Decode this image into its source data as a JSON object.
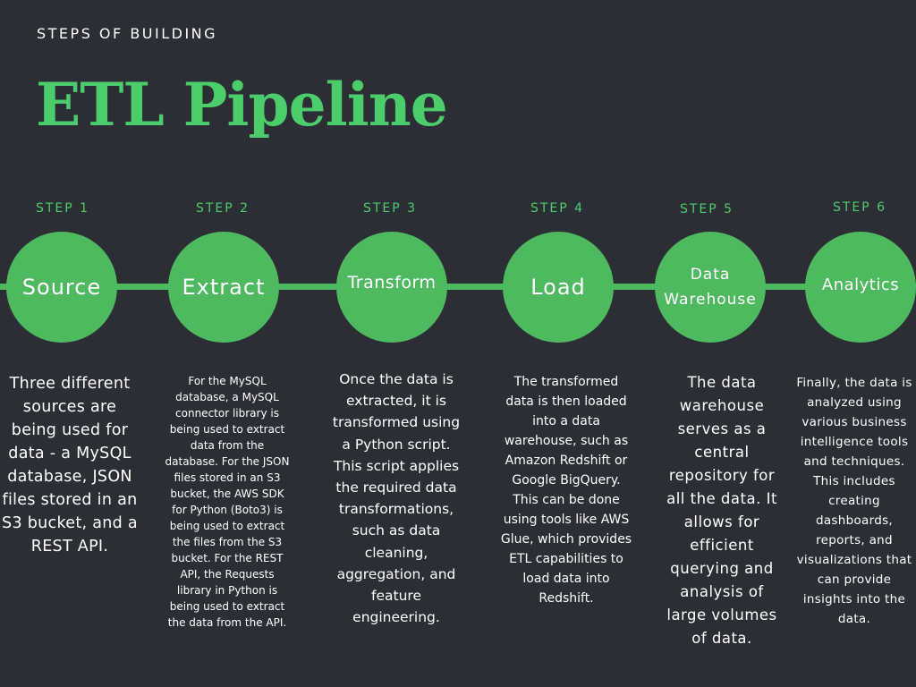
{
  "header": {
    "subtitle": "STEPS OF BUILDING",
    "title": "ETL Pipeline"
  },
  "colors": {
    "background": "#2c2e36",
    "accent": "#4ccd6b",
    "circle": "#4fb960",
    "text": "#ffffff"
  },
  "steps": [
    {
      "label": "STEP 1",
      "name": "Source",
      "description": "Three different sources are being used for data - a MySQL database, JSON files stored in an S3 bucket, and a REST API."
    },
    {
      "label": "STEP 2",
      "name": "Extract",
      "description": "For the MySQL database, a MySQL connector library is being used to extract data from the database. For the JSON files stored in an S3 bucket, the AWS SDK for Python (Boto3) is being used to extract the files from the S3 bucket. For the REST API, the Requests library in Python is being used to extract the data from the API."
    },
    {
      "label": "STEP 3",
      "name": "Transform",
      "description": "Once the data is extracted, it is transformed using a Python script. This script applies the required data transformations, such as data cleaning, aggregation, and feature engineering."
    },
    {
      "label": "STEP 4",
      "name": "Load",
      "description": "The transformed data is then loaded into a data warehouse, such as Amazon Redshift or Google BigQuery. This can be done using tools like AWS Glue, which provides ETL capabilities to load data into Redshift."
    },
    {
      "label": "STEP 5",
      "name": "Data Warehouse",
      "description": "The data warehouse serves as a central repository for all the data. It allows for efficient querying and analysis of large volumes of data."
    },
    {
      "label": "STEP 6",
      "name": "Analytics",
      "description": "Finally, the data is analyzed using various business intelligence tools and techniques. This includes creating dashboards, reports, and visualizations that can provide insights into the data."
    }
  ]
}
